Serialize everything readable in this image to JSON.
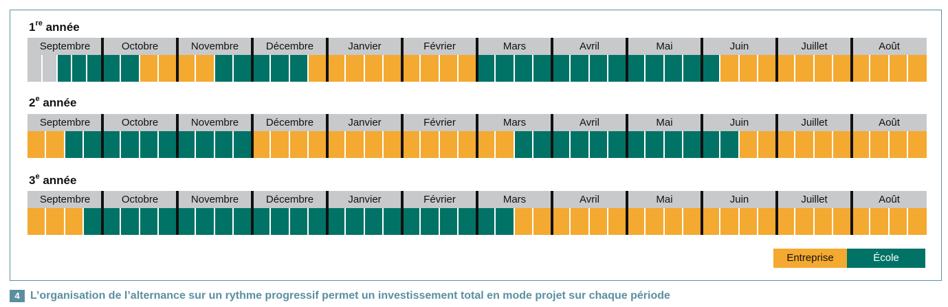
{
  "months": [
    "Septembre",
    "Octobre",
    "Novembre",
    "Décembre",
    "Janvier",
    "Février",
    "Mars",
    "Avril",
    "Mai",
    "Juin",
    "Juillet",
    "Août"
  ],
  "years": [
    {
      "title_num": "1",
      "title_sup": "re",
      "title_word": "année",
      "weeks": [
        [
          "vide",
          "vide",
          "ecole",
          "ecole",
          "ecole"
        ],
        [
          "ecole",
          "ecole",
          "entreprise",
          "entreprise"
        ],
        [
          "entreprise",
          "entreprise",
          "ecole",
          "ecole"
        ],
        [
          "ecole",
          "ecole",
          "ecole",
          "entreprise"
        ],
        [
          "entreprise",
          "entreprise",
          "entreprise",
          "entreprise"
        ],
        [
          "entreprise",
          "entreprise",
          "entreprise",
          "entreprise"
        ],
        [
          "ecole",
          "ecole",
          "ecole",
          "ecole"
        ],
        [
          "ecole",
          "ecole",
          "ecole",
          "ecole"
        ],
        [
          "ecole",
          "ecole",
          "ecole",
          "ecole"
        ],
        [
          "ecole",
          "entreprise",
          "entreprise",
          "entreprise"
        ],
        [
          "entreprise",
          "entreprise",
          "entreprise",
          "entreprise"
        ],
        [
          "entreprise",
          "entreprise",
          "entreprise",
          "entreprise"
        ]
      ]
    },
    {
      "title_num": "2",
      "title_sup": "e",
      "title_word": "année",
      "weeks": [
        [
          "entreprise",
          "entreprise",
          "ecole",
          "ecole"
        ],
        [
          "ecole",
          "ecole",
          "ecole",
          "ecole"
        ],
        [
          "ecole",
          "ecole",
          "ecole",
          "ecole"
        ],
        [
          "entreprise",
          "entreprise",
          "entreprise",
          "entreprise"
        ],
        [
          "entreprise",
          "entreprise",
          "entreprise",
          "entreprise"
        ],
        [
          "entreprise",
          "entreprise",
          "entreprise",
          "entreprise"
        ],
        [
          "entreprise",
          "entreprise",
          "ecole",
          "ecole"
        ],
        [
          "ecole",
          "ecole",
          "ecole",
          "ecole"
        ],
        [
          "ecole",
          "ecole",
          "ecole",
          "ecole"
        ],
        [
          "ecole",
          "ecole",
          "entreprise",
          "entreprise"
        ],
        [
          "entreprise",
          "entreprise",
          "entreprise",
          "entreprise"
        ],
        [
          "entreprise",
          "entreprise",
          "entreprise",
          "entreprise"
        ]
      ]
    },
    {
      "title_num": "3",
      "title_sup": "e",
      "title_word": "année",
      "weeks": [
        [
          "entreprise",
          "entreprise",
          "entreprise",
          "ecole"
        ],
        [
          "ecole",
          "ecole",
          "ecole",
          "ecole"
        ],
        [
          "ecole",
          "ecole",
          "ecole",
          "ecole"
        ],
        [
          "ecole",
          "ecole",
          "ecole",
          "ecole"
        ],
        [
          "ecole",
          "ecole",
          "ecole",
          "ecole"
        ],
        [
          "ecole",
          "ecole",
          "ecole",
          "ecole"
        ],
        [
          "ecole",
          "ecole",
          "entreprise",
          "entreprise"
        ],
        [
          "entreprise",
          "entreprise",
          "entreprise",
          "entreprise"
        ],
        [
          "entreprise",
          "entreprise",
          "entreprise",
          "entreprise"
        ],
        [
          "entreprise",
          "entreprise",
          "entreprise",
          "entreprise"
        ],
        [
          "entreprise",
          "entreprise",
          "entreprise",
          "entreprise"
        ],
        [
          "entreprise",
          "entreprise",
          "entreprise",
          "entreprise"
        ]
      ]
    }
  ],
  "legend": {
    "entreprise": "Entreprise",
    "ecole": "École",
    "colors": {
      "entreprise": "#f4a930",
      "ecole": "#007366",
      "vide": "#c8c9cb"
    }
  },
  "caption": {
    "number": "4",
    "text": "L’organisation de l’alternance sur un rythme progressif permet un investissement total en mode projet sur chaque période"
  }
}
